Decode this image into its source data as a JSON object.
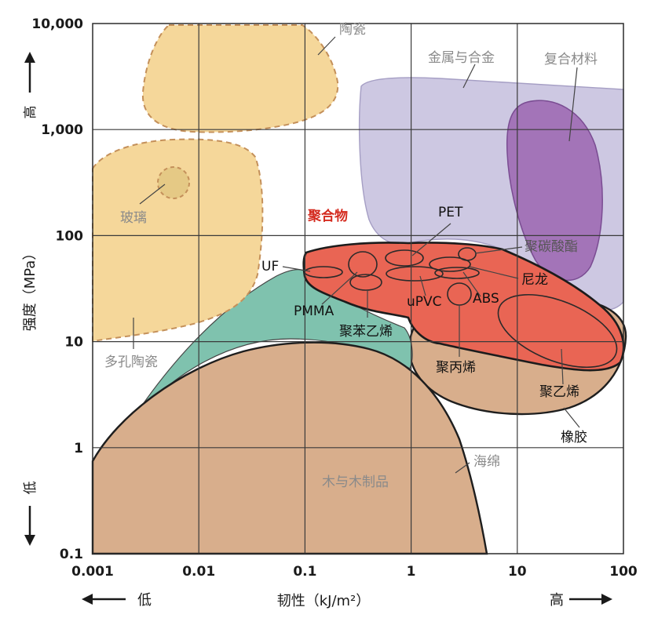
{
  "chart_data": {
    "type": "region-map",
    "x_axis": {
      "label": "韧性（kJ/m²）",
      "scale": "log",
      "range": [
        0.001,
        100
      ],
      "ticks": [
        "0.001",
        "0.01",
        "0.1",
        "1",
        "10",
        "100"
      ],
      "low_label": "低",
      "high_label": "高"
    },
    "y_axis": {
      "label": "强度（MPa）",
      "scale": "log",
      "range": [
        0.1,
        10000
      ],
      "ticks": [
        "0.1",
        "1",
        "10",
        "100",
        "1,000",
        "10,000"
      ],
      "low_label": "低",
      "high_label": "高"
    },
    "grid": true,
    "group_label": "聚合物",
    "regions": [
      {
        "name": "陶瓷",
        "color": "#f5d79a",
        "border": "dashed",
        "toughness_range": [
          0.003,
          0.07
        ],
        "strength_range": [
          900,
          10000
        ]
      },
      {
        "name": "玻璃",
        "color": "#e5c985",
        "border": "dashed",
        "toughness_range": [
          0.004,
          0.008
        ],
        "strength_range": [
          230,
          450
        ]
      },
      {
        "name": "多孔陶瓷",
        "color": "#f5d79a",
        "border": "dashed",
        "toughness_range": [
          0.001,
          0.06
        ],
        "strength_range": [
          10,
          1100
        ]
      },
      {
        "name": "金属与合金",
        "color": "#cdc8e2",
        "border": "solid",
        "toughness_range": [
          0.3,
          100
        ],
        "strength_range": [
          15,
          1800
        ]
      },
      {
        "name": "复合材料",
        "color": "#a374b8",
        "border": "solid",
        "toughness_range": [
          10,
          70
        ],
        "strength_range": [
          30,
          1200
        ]
      },
      {
        "name": "橡胶",
        "color": "#d8ae8c",
        "border": "solid",
        "toughness_range": [
          1,
          90
        ],
        "strength_range": [
          1.5,
          20
        ]
      },
      {
        "name": "木与木制品",
        "color": "#d8ae8c",
        "border": "solid",
        "toughness_range": [
          0.001,
          5
        ],
        "strength_range": [
          0.1,
          10
        ]
      },
      {
        "name": "海绵",
        "color": "#7fc2ae",
        "border": "solid",
        "toughness_range": [
          0.002,
          1
        ],
        "strength_range": [
          2,
          50
        ]
      },
      {
        "name": "聚合物",
        "color": "#e96554",
        "border": "solid",
        "toughness_range": [
          0.1,
          90
        ],
        "strength_range": [
          8,
          80
        ]
      }
    ],
    "polymers": [
      {
        "name": "UF",
        "toughness": 0.16,
        "strength": 45
      },
      {
        "name": "PMMA",
        "toughness": 0.35,
        "strength": 55
      },
      {
        "name": "聚苯乙烯",
        "toughness": 0.4,
        "strength": 35
      },
      {
        "name": "PET",
        "toughness": 1.0,
        "strength": 60
      },
      {
        "name": "uPVC",
        "toughness": 1.3,
        "strength": 45
      },
      {
        "name": "聚碳酸酯",
        "toughness": 3.5,
        "strength": 65
      },
      {
        "name": "尼龙",
        "toughness": 3.0,
        "strength": 50
      },
      {
        "name": "ABS",
        "toughness": 2.8,
        "strength": 42
      },
      {
        "name": "聚丙烯",
        "toughness": 2.8,
        "strength": 28
      },
      {
        "name": "聚乙烯",
        "toughness": 25,
        "strength": 15
      }
    ]
  },
  "colors": {
    "grid": "#3a3a3a",
    "axis_text": "#1a1a1a",
    "region_label": "#8a8a8a",
    "polymer_label": "#111111",
    "group_label": "#d42a1e",
    "polymer_outline": "#1c1c1c"
  }
}
